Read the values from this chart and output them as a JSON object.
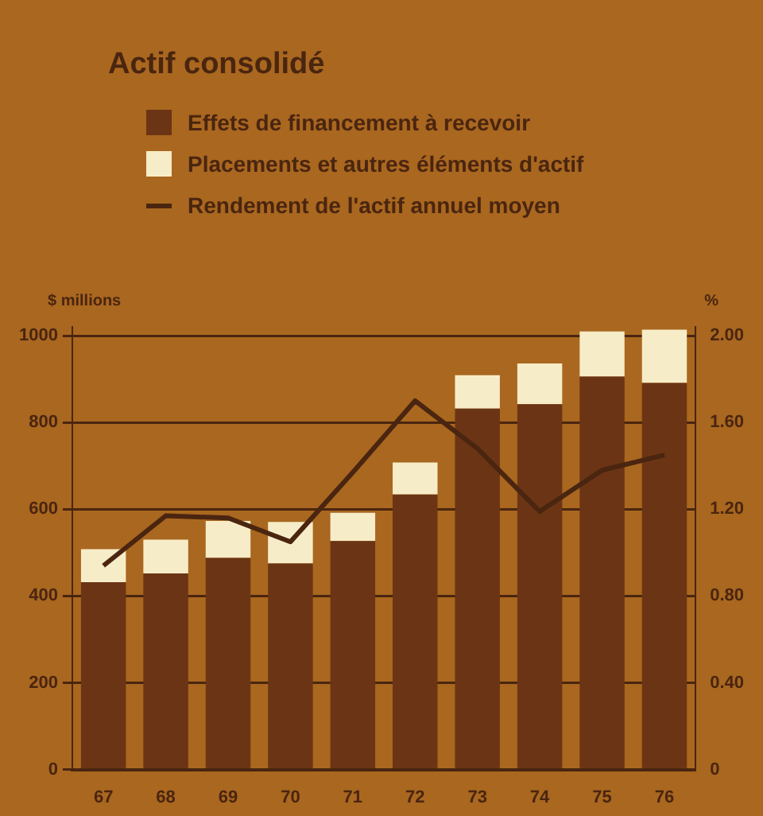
{
  "chart_data": {
    "type": "bar",
    "title": "Actif consolidé",
    "ylabel": "$ millions",
    "y2label": "%",
    "categories": [
      "67",
      "68",
      "69",
      "70",
      "71",
      "72",
      "73",
      "74",
      "75",
      "76"
    ],
    "stacked": true,
    "grid": "y",
    "legend": "top left",
    "series": [
      {
        "name": "Effets de financement à recevoir",
        "color": "#6b3515",
        "values": [
          432,
          452,
          488,
          475,
          527,
          634,
          832,
          842,
          906,
          891
        ]
      },
      {
        "name": "Placements et autres éléments d'actif",
        "color": "#f7ecc8",
        "values": [
          76,
          78,
          85,
          96,
          65,
          74,
          77,
          94,
          104,
          123
        ]
      },
      {
        "name": "Rendement de l'actif annuel moyen",
        "type": "line",
        "axis": "y2",
        "color": "#4a2510",
        "values": [
          0.94,
          1.17,
          1.16,
          1.05,
          1.37,
          1.7,
          1.48,
          1.19,
          1.38,
          1.45
        ]
      }
    ],
    "ylim": [
      0,
      1020
    ],
    "yticks": [
      0,
      200,
      400,
      600,
      800,
      1000
    ],
    "y2lim": [
      0,
      2.04
    ],
    "y2ticks": [
      0,
      {
        "value": 0.4,
        "label": "0.40"
      },
      {
        "value": 0.8,
        "label": "0.80"
      },
      {
        "value": 1.2,
        "label": "1.20"
      },
      {
        "value": 1.6,
        "label": "1.60"
      },
      {
        "value": 2,
        "label": "2.00"
      }
    ]
  }
}
